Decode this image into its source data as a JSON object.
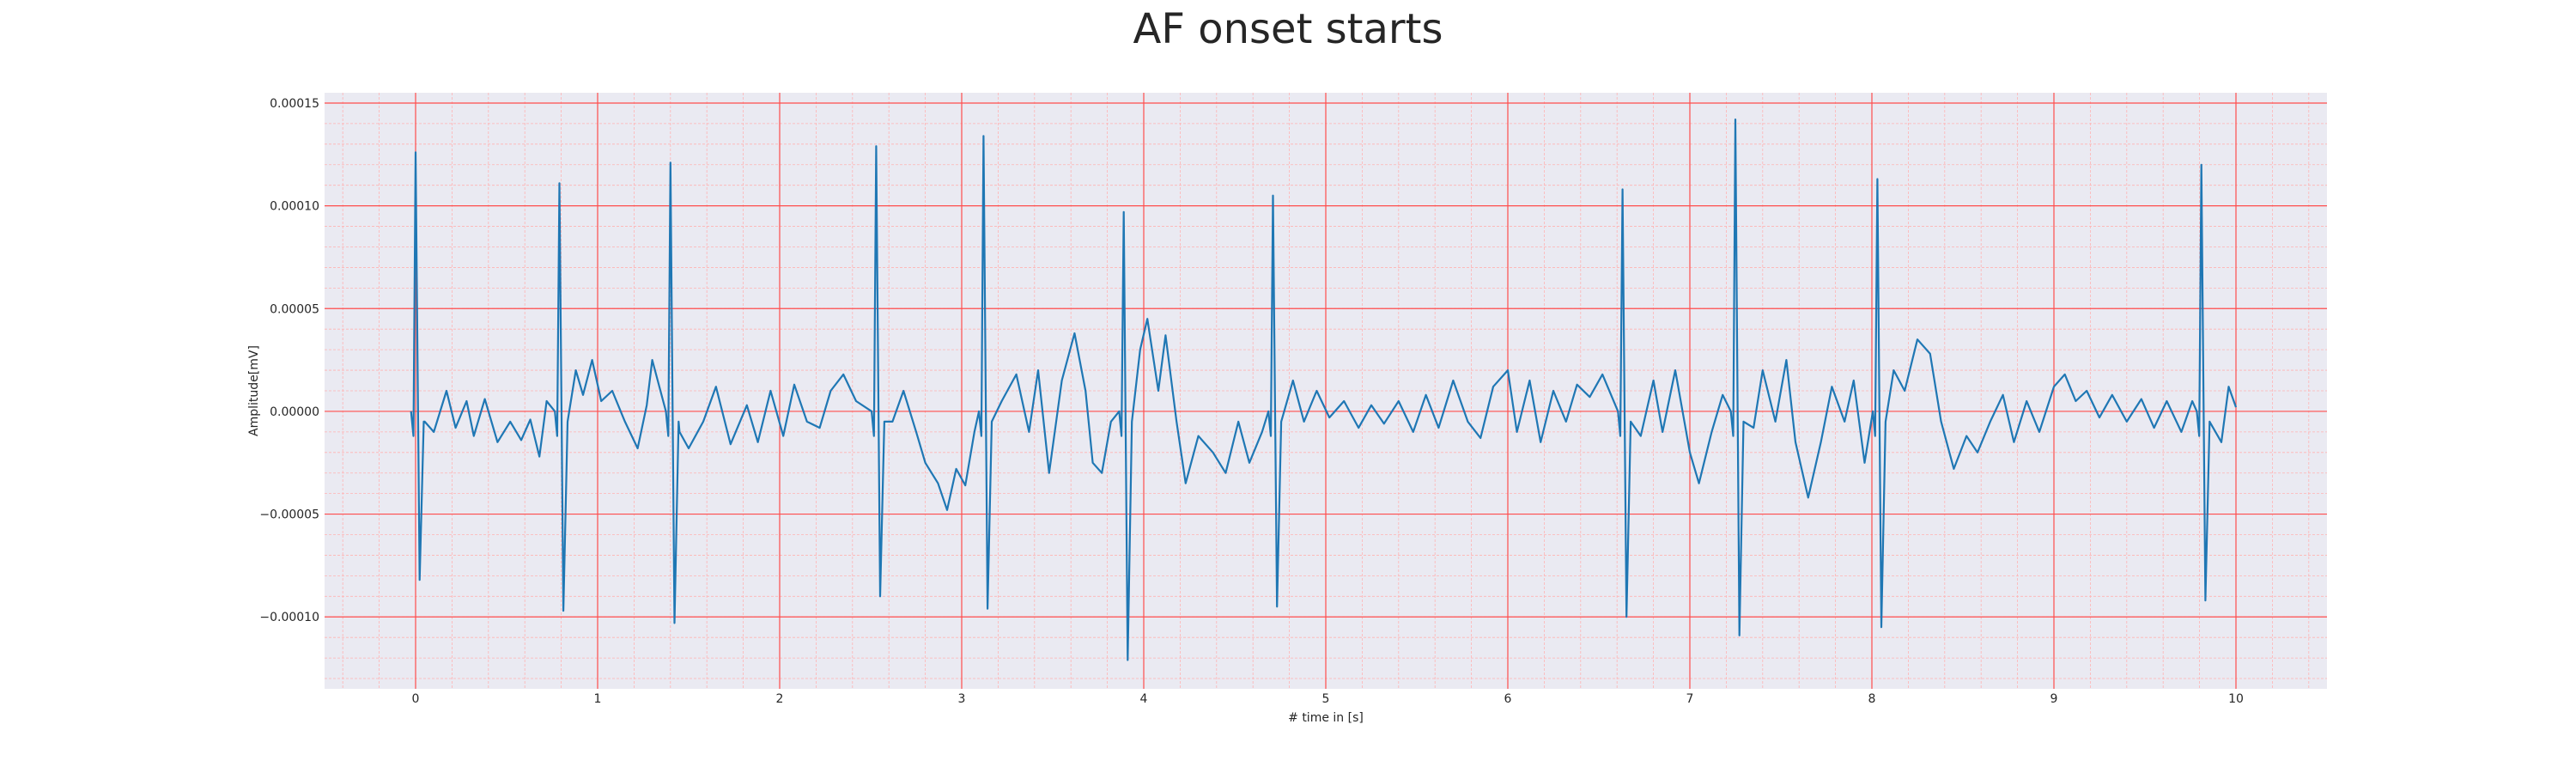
{
  "chart_data": {
    "type": "line",
    "title": "AF onset starts",
    "xlabel": "# time in [s]",
    "ylabel": "Amplitude[mV]",
    "xlim": [
      -0.5,
      10.5
    ],
    "ylim": [
      -0.000135,
      0.000155
    ],
    "x_ticks": [
      0,
      1,
      2,
      3,
      4,
      5,
      6,
      7,
      8,
      9,
      10
    ],
    "x_tick_labels": [
      "0",
      "1",
      "2",
      "3",
      "4",
      "5",
      "6",
      "7",
      "8",
      "9",
      "10"
    ],
    "y_ticks": [
      -0.0001,
      -5e-05,
      0.0,
      5e-05,
      0.0001,
      0.00015
    ],
    "y_tick_labels": [
      "−0.00010",
      "−0.00005",
      "0.00000",
      "0.00005",
      "0.00010",
      "0.00015"
    ],
    "grid": true,
    "minor_grid": true,
    "colors": {
      "background": "#eaeaf2",
      "major_grid": "#ff4d4d",
      "minor_grid": "#ffb3b3",
      "line": "#1f77b4"
    },
    "series": [
      {
        "beats": [
          {
            "t": 0.0,
            "r": 0.000126,
            "s": -8.2e-05
          },
          {
            "t": 0.79,
            "r": 0.000111,
            "s": -9.7e-05
          },
          {
            "t": 1.4,
            "r": 0.000121,
            "s": -0.000103
          },
          {
            "t": 2.53,
            "r": 0.000129,
            "s": -9e-05
          },
          {
            "t": 3.12,
            "r": 0.000134,
            "s": -9.6e-05
          },
          {
            "t": 3.89,
            "r": 9.7e-05,
            "s": -0.000121
          },
          {
            "t": 4.71,
            "r": 0.000105,
            "s": -9.5e-05
          },
          {
            "t": 6.63,
            "r": 0.000108,
            "s": -0.0001
          },
          {
            "t": 7.25,
            "r": 0.000142,
            "s": -0.000109
          },
          {
            "t": 8.03,
            "r": 0.000113,
            "s": -0.000105
          },
          {
            "t": 9.81,
            "r": 0.00012,
            "s": -9.2e-05
          }
        ],
        "baseline_points": [
          [
            0.05,
            -5e-06
          ],
          [
            0.1,
            -1e-05
          ],
          [
            0.17,
            1e-05
          ],
          [
            0.22,
            -8e-06
          ],
          [
            0.28,
            5e-06
          ],
          [
            0.32,
            -1.2e-05
          ],
          [
            0.38,
            6e-06
          ],
          [
            0.45,
            -1.5e-05
          ],
          [
            0.52,
            -5e-06
          ],
          [
            0.58,
            -1.4e-05
          ],
          [
            0.63,
            -4e-06
          ],
          [
            0.68,
            -2.2e-05
          ],
          [
            0.72,
            5e-06
          ],
          [
            0.83,
            0.0
          ],
          [
            0.88,
            2e-05
          ],
          [
            0.92,
            8e-06
          ],
          [
            0.97,
            2.5e-05
          ],
          [
            1.02,
            5e-06
          ],
          [
            1.08,
            1e-05
          ],
          [
            1.15,
            -5e-06
          ],
          [
            1.22,
            -1.8e-05
          ],
          [
            1.27,
            3e-06
          ],
          [
            1.3,
            2.5e-05
          ],
          [
            1.35,
            2e-05
          ],
          [
            1.45,
            -1e-05
          ],
          [
            1.5,
            -1.8e-05
          ],
          [
            1.58,
            -5e-06
          ],
          [
            1.65,
            1.2e-05
          ],
          [
            1.73,
            -1.6e-05
          ],
          [
            1.82,
            3e-06
          ],
          [
            1.88,
            -1.5e-05
          ],
          [
            1.95,
            1e-05
          ],
          [
            2.02,
            -1.2e-05
          ],
          [
            2.08,
            1.3e-05
          ],
          [
            2.15,
            -5e-06
          ],
          [
            2.22,
            -8e-06
          ],
          [
            2.28,
            1e-05
          ],
          [
            2.35,
            1.8e-05
          ],
          [
            2.42,
            5e-06
          ],
          [
            2.48,
            8e-06
          ],
          [
            2.57,
            8e-06
          ],
          [
            2.62,
            -5e-06
          ],
          [
            2.68,
            1e-05
          ],
          [
            2.75,
            -1e-05
          ],
          [
            2.8,
            -2.5e-05
          ],
          [
            2.87,
            -3.5e-05
          ],
          [
            2.92,
            -4.8e-05
          ],
          [
            2.97,
            -2.8e-05
          ],
          [
            3.02,
            -3.6e-05
          ],
          [
            3.07,
            -1e-05
          ],
          [
            3.16,
            2.5e-05
          ],
          [
            3.22,
            5e-06
          ],
          [
            3.3,
            1.8e-05
          ],
          [
            3.37,
            -1e-05
          ],
          [
            3.42,
            2e-05
          ],
          [
            3.48,
            -3e-05
          ],
          [
            3.55,
            1.5e-05
          ],
          [
            3.62,
            3.8e-05
          ],
          [
            3.68,
            1e-05
          ],
          [
            3.72,
            -2.5e-05
          ],
          [
            3.77,
            -3e-05
          ],
          [
            3.82,
            -5e-06
          ],
          [
            3.86,
            -3.5e-05
          ],
          [
            3.93,
            1e-05
          ],
          [
            3.98,
            3e-05
          ],
          [
            4.02,
            4.5e-05
          ],
          [
            4.08,
            1e-05
          ],
          [
            4.12,
            3.7e-05
          ],
          [
            4.18,
            -5e-06
          ],
          [
            4.23,
            -3.5e-05
          ],
          [
            4.3,
            -1.2e-05
          ],
          [
            4.38,
            -2e-05
          ],
          [
            4.45,
            -3e-05
          ],
          [
            4.52,
            -5e-06
          ],
          [
            4.58,
            -2.5e-05
          ],
          [
            4.65,
            -1e-05
          ],
          [
            4.75,
            5e-06
          ],
          [
            4.82,
            1.5e-05
          ],
          [
            4.88,
            -5e-06
          ],
          [
            4.95,
            1e-05
          ],
          [
            5.02,
            -3e-06
          ],
          [
            5.1,
            5e-06
          ],
          [
            5.18,
            -8e-06
          ],
          [
            5.25,
            3e-06
          ],
          [
            5.32,
            -6e-06
          ],
          [
            5.4,
            5e-06
          ],
          [
            5.48,
            -1e-05
          ],
          [
            5.55,
            8e-06
          ],
          [
            5.62,
            -8e-06
          ],
          [
            5.7,
            1.5e-05
          ],
          [
            5.78,
            -5e-06
          ],
          [
            5.85,
            -1.3e-05
          ],
          [
            5.92,
            1.2e-05
          ],
          [
            6.0,
            2e-05
          ],
          [
            6.05,
            -1e-05
          ],
          [
            6.12,
            1.5e-05
          ],
          [
            6.18,
            -1.5e-05
          ],
          [
            6.25,
            1e-05
          ],
          [
            6.32,
            -5e-06
          ],
          [
            6.38,
            1.3e-05
          ],
          [
            6.45,
            7e-06
          ],
          [
            6.52,
            1.8e-05
          ],
          [
            6.58,
            -1e-05
          ],
          [
            6.68,
            1e-05
          ],
          [
            6.73,
            -1.2e-05
          ],
          [
            6.8,
            1.5e-05
          ],
          [
            6.85,
            -1e-05
          ],
          [
            6.92,
            2e-05
          ],
          [
            7.0,
            -2e-05
          ],
          [
            7.05,
            -3.5e-05
          ],
          [
            7.12,
            -1e-05
          ],
          [
            7.18,
            8e-06
          ],
          [
            7.3,
            1.2e-05
          ],
          [
            7.35,
            -8e-06
          ],
          [
            7.4,
            2e-05
          ],
          [
            7.47,
            -5e-06
          ],
          [
            7.53,
            2.5e-05
          ],
          [
            7.58,
            -1.5e-05
          ],
          [
            7.65,
            -4.2e-05
          ],
          [
            7.72,
            -1.5e-05
          ],
          [
            7.78,
            1.2e-05
          ],
          [
            7.85,
            -5e-06
          ],
          [
            7.9,
            1.5e-05
          ],
          [
            7.96,
            -2.5e-05
          ],
          [
            8.07,
            1e-05
          ],
          [
            8.12,
            2e-05
          ],
          [
            8.18,
            1e-05
          ],
          [
            8.25,
            3.5e-05
          ],
          [
            8.32,
            2.8e-05
          ],
          [
            8.38,
            -5e-06
          ],
          [
            8.45,
            -2.8e-05
          ],
          [
            8.52,
            -1.2e-05
          ],
          [
            8.58,
            -2e-05
          ],
          [
            8.65,
            -5e-06
          ],
          [
            8.72,
            8e-06
          ],
          [
            8.78,
            -1.5e-05
          ],
          [
            8.85,
            5e-06
          ],
          [
            8.92,
            -1e-05
          ],
          [
            9.0,
            1.2e-05
          ],
          [
            9.06,
            1.8e-05
          ],
          [
            9.12,
            5e-06
          ],
          [
            9.18,
            1e-05
          ],
          [
            9.25,
            -3e-06
          ],
          [
            9.32,
            8e-06
          ],
          [
            9.4,
            -5e-06
          ],
          [
            9.48,
            6e-06
          ],
          [
            9.55,
            -8e-06
          ],
          [
            9.62,
            5e-06
          ],
          [
            9.7,
            -1e-05
          ],
          [
            9.76,
            5e-06
          ],
          [
            9.86,
            5e-06
          ],
          [
            9.92,
            -1.5e-05
          ],
          [
            9.96,
            1.2e-05
          ],
          [
            10.0,
            2e-06
          ]
        ]
      }
    ]
  }
}
